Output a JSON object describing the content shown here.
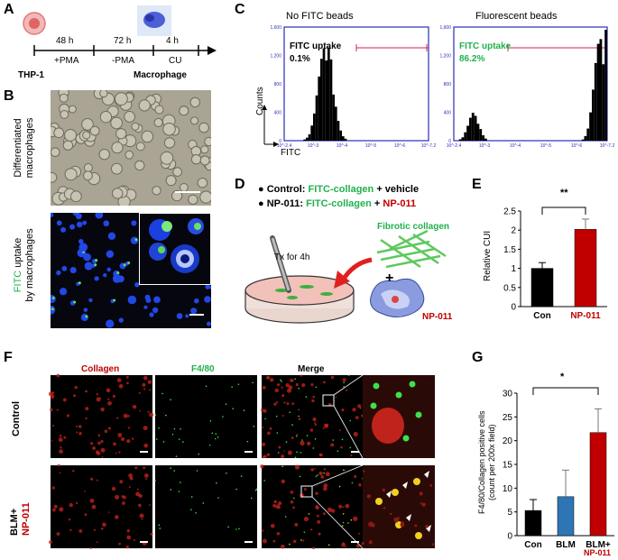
{
  "panels": {
    "A": "A",
    "B": "B",
    "C": "C",
    "D": "D",
    "E": "E",
    "F": "F",
    "G": "G"
  },
  "panelA": {
    "cell_start": "THP-1",
    "cell_end": "Macrophage",
    "steps": [
      {
        "time": "48 h",
        "treatment": "+PMA"
      },
      {
        "time": "72 h",
        "treatment": "-PMA"
      },
      {
        "time": "4 h",
        "treatment": "CU"
      }
    ]
  },
  "panelB": {
    "top_label_1": "Differentiated",
    "top_label_2": "macrophages",
    "bottom_label_fitc": "FITC",
    "bottom_label_rest": " uptake",
    "bottom_label_2": "by macrophages"
  },
  "panelC": {
    "titles": [
      "No FITC beads",
      "Fluorescent beads"
    ],
    "gate_label": "FITC uptake",
    "gate_values": [
      "0.1%",
      "86.2%"
    ],
    "y_axis_label": "Counts",
    "x_axis_label": "FITC",
    "y_ticks": [
      "0",
      "400",
      "800",
      "1,200",
      "1,600"
    ],
    "x_ticks": [
      "10^-2.4",
      "10^-3",
      "10^-4",
      "10^-5",
      "10^-6",
      "10^-7.2"
    ]
  },
  "panelD": {
    "control_prefix": "Control: ",
    "control_green": "FITC-collagen",
    "control_suffix": " + vehicle",
    "np_prefix": "NP-011: ",
    "np_green": "FITC-collagen",
    "np_plus": " + ",
    "np_red": "NP-011",
    "tx_label": "Tx for 4h",
    "fibrotic_label": "Fibrotic collagen",
    "np_mol_label": "NP-011",
    "plus": "+"
  },
  "panelE": {
    "significance": "**",
    "ylabel": "Relative CUI"
  },
  "panelF": {
    "col_headers": [
      "Collagen",
      "F4/80",
      "Merge"
    ],
    "row_control": "Control",
    "row_blm_1": "BLM+",
    "row_blm_2": "NP-011"
  },
  "panelG": {
    "significance": "*",
    "ylabel_1": "F4/80/Collagen positive cells",
    "ylabel_2": "(count per 200x field)",
    "xlabel_red": "NP-011"
  },
  "chart_data": [
    {
      "type": "bar",
      "categories": [
        "Con",
        "NP-011"
      ],
      "values": [
        1.0,
        2.02
      ],
      "errors": [
        0.15,
        0.27
      ],
      "colors": [
        "#000000",
        "#c00000"
      ],
      "ylim": [
        0,
        2.5
      ],
      "yticks": [
        0,
        0.5,
        1,
        1.5,
        2,
        2.5
      ],
      "ylabel": "Relative CUI"
    },
    {
      "type": "bar",
      "categories": [
        "Con",
        "BLM",
        "BLM+"
      ],
      "values": [
        5.3,
        8.2,
        21.7
      ],
      "errors": [
        2.3,
        5.6,
        5.0
      ],
      "colors": [
        "#000000",
        "#2e75b6",
        "#c00000"
      ],
      "ylim": [
        0,
        30
      ],
      "yticks": [
        0,
        5,
        10,
        15,
        20,
        25,
        30
      ],
      "ylabel": "F4/80/Collagen positive cells (count per 200x field)"
    }
  ]
}
